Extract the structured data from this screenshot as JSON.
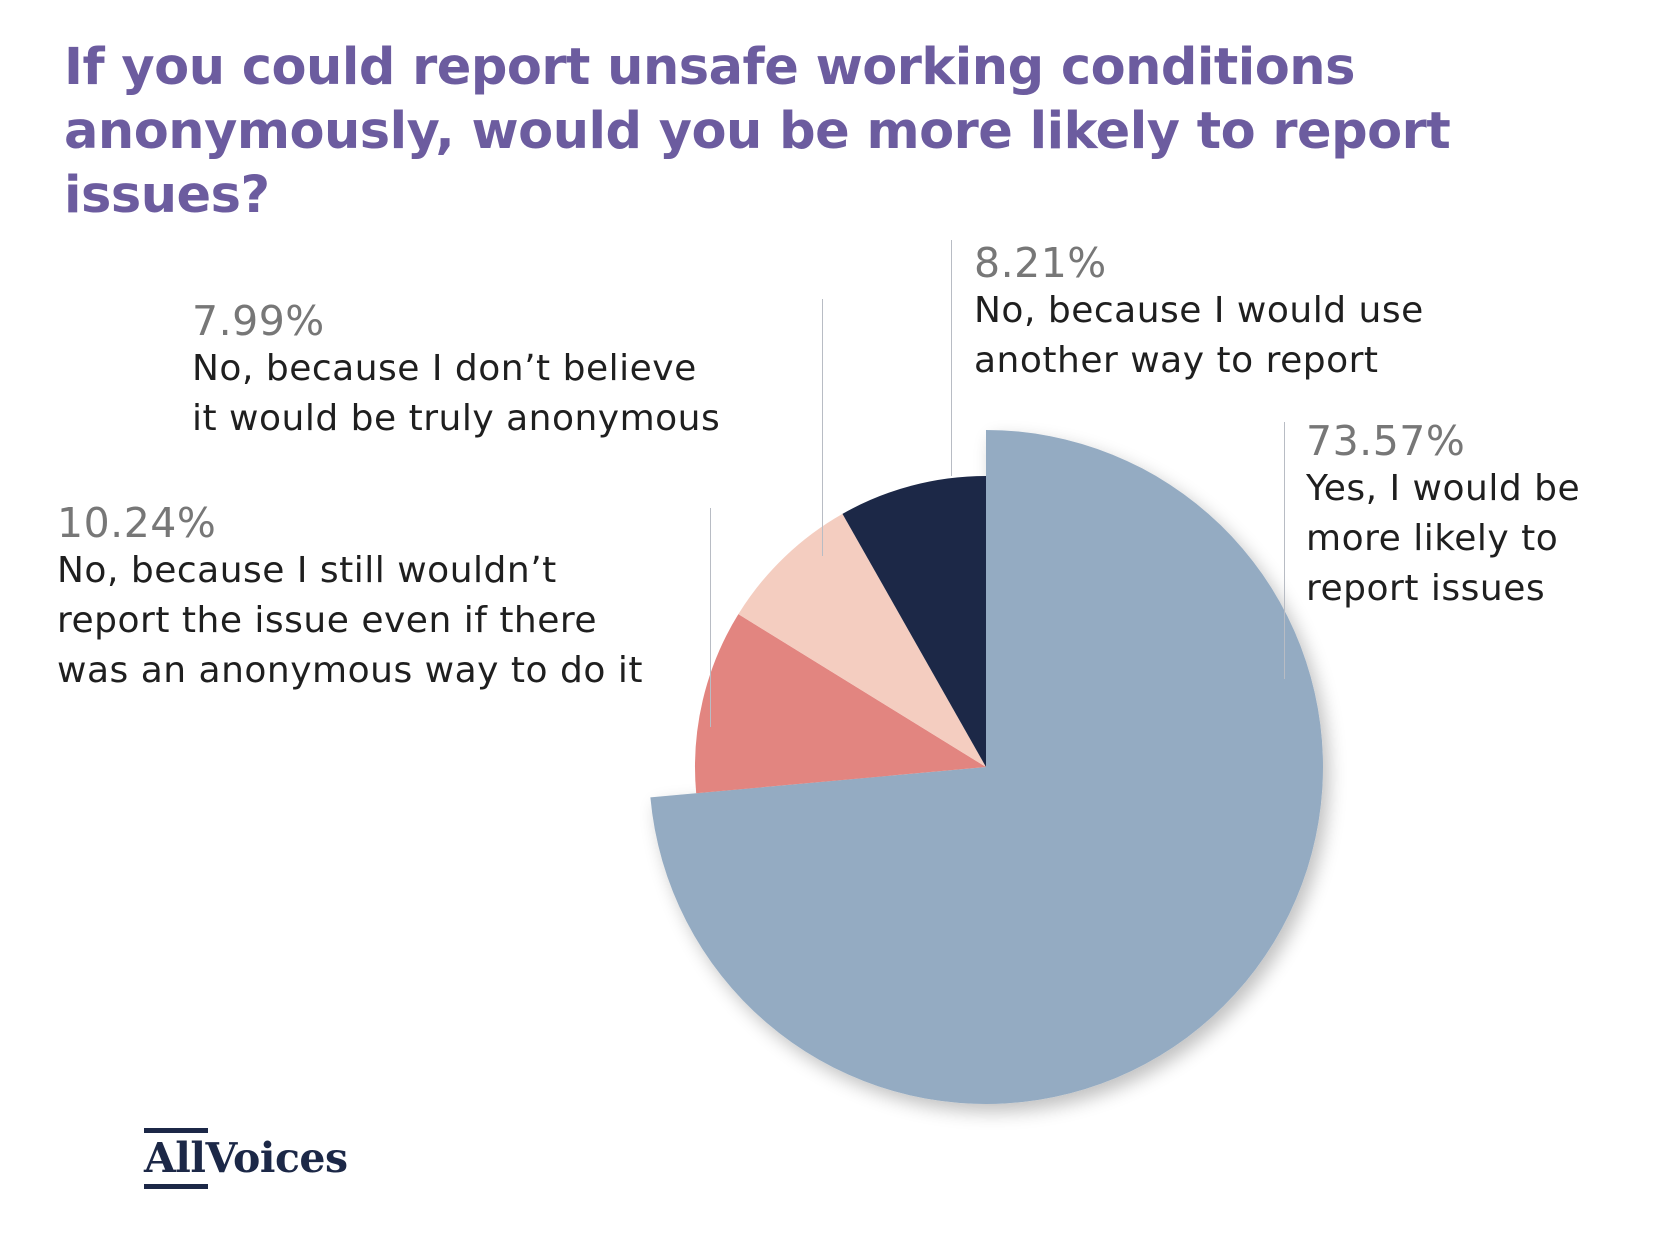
{
  "chart_data": {
    "type": "pie",
    "title": "If you could report unsafe working conditions anonymously, would you be more likely to report issues?",
    "title_lines": [
      "If you could report unsafe working conditions",
      "anonymously, would you be more likely to report issues?"
    ],
    "slices": [
      {
        "label": "Yes, I would be more likely to report issues",
        "label_lines": [
          "Yes, I would be",
          "more likely to",
          "report issues"
        ],
        "value": 73.57,
        "value_label": "73.57%",
        "color": "#94abc2",
        "exploded": true
      },
      {
        "label": "No, because I still wouldn't report the issue even if there was an anonymous way to do it",
        "label_lines": [
          "No, because I still wouldn’t",
          "report the issue even if there",
          "was an anonymous way to do it"
        ],
        "value": 10.24,
        "value_label": "10.24%",
        "color": "#e28580"
      },
      {
        "label": "No, because I don't believe it would be truly anonymous",
        "label_lines": [
          "No, because I don’t believe",
          "it would be truly anonymous"
        ],
        "value": 7.99,
        "value_label": "7.99%",
        "color": "#f4cdc0"
      },
      {
        "label": "No, because I would use another way to report",
        "label_lines": [
          "No, because I would use",
          "another way to report"
        ],
        "value": 8.21,
        "value_label": "8.21%",
        "color": "#1c2847"
      }
    ],
    "start_angle": "12 o'clock",
    "direction": "clockwise",
    "legend": "none (callout labels)"
  },
  "brand": {
    "logo_text": "AllVoices",
    "logo_part1": "All",
    "logo_part2": "Voices"
  }
}
